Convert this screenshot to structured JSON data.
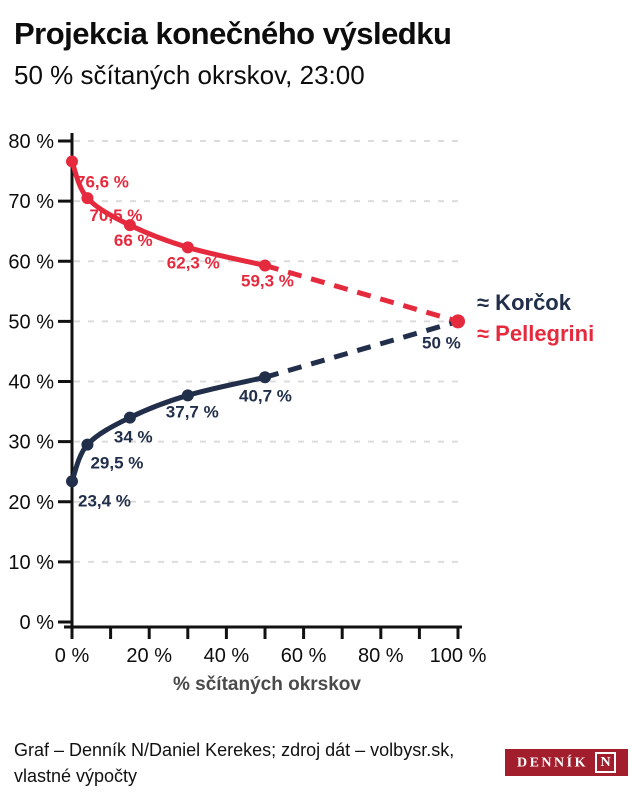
{
  "header": {
    "title": "Projekcia konečného výsledku",
    "subtitle": "50 % sčítaných okrskov, 23:00"
  },
  "chart_data": {
    "type": "line",
    "title": "Projekcia konečného výsledku",
    "subtitle": "50 % sčítaných okrskov, 23:00",
    "xlabel": "% sčítaných okrskov",
    "ylabel": "",
    "xlim": [
      0,
      100
    ],
    "ylim": [
      0,
      80
    ],
    "grid": "horizontal-dashed",
    "legend_position": "right",
    "x_minor_ticks": [
      0,
      10,
      20,
      30,
      40,
      50,
      60,
      70,
      80,
      90,
      100
    ],
    "x_ticks": [
      {
        "value": 0,
        "label": "0 %"
      },
      {
        "value": 20,
        "label": "20 %"
      },
      {
        "value": 40,
        "label": "40 %"
      },
      {
        "value": 60,
        "label": "60 %"
      },
      {
        "value": 80,
        "label": "80 %"
      },
      {
        "value": 100,
        "label": "100 %"
      }
    ],
    "y_ticks": [
      {
        "value": 0,
        "label": "0 %"
      },
      {
        "value": 10,
        "label": "10 %"
      },
      {
        "value": 20,
        "label": "20 %"
      },
      {
        "value": 30,
        "label": "30 %"
      },
      {
        "value": 40,
        "label": "40 %"
      },
      {
        "value": 50,
        "label": "50 %"
      },
      {
        "value": 60,
        "label": "60 %"
      },
      {
        "value": 70,
        "label": "70 %"
      },
      {
        "value": 80,
        "label": "80 %"
      }
    ],
    "series": [
      {
        "name": "Korčok",
        "legend_label": "≈ Korčok",
        "color": "#222f4b",
        "points": [
          {
            "x": 0,
            "y": 23.4,
            "label": "23,4 %"
          },
          {
            "x": 4,
            "y": 29.5,
            "label": "29,5 %"
          },
          {
            "x": 15,
            "y": 34,
            "label": "34 %"
          },
          {
            "x": 30,
            "y": 37.7,
            "label": "37,7 %"
          },
          {
            "x": 50,
            "y": 40.7,
            "label": "40,7 %"
          }
        ],
        "projection": {
          "x": 100,
          "y": 50,
          "label": "50 %",
          "show_dot": false
        }
      },
      {
        "name": "Pellegrini",
        "legend_label": "≈ Pellegrini",
        "color": "#e62a3e",
        "points": [
          {
            "x": 0,
            "y": 76.6,
            "label": "76,6 %"
          },
          {
            "x": 4,
            "y": 70.5,
            "label": "70,5 %"
          },
          {
            "x": 15,
            "y": 66,
            "label": "66 %"
          },
          {
            "x": 30,
            "y": 62.3,
            "label": "62,3 %"
          },
          {
            "x": 50,
            "y": 59.3,
            "label": "59,3 %"
          }
        ],
        "projection": {
          "x": 100,
          "y": 50,
          "label": null,
          "show_dot": true
        }
      }
    ]
  },
  "footer": {
    "credit_line1": "Graf – Denník N/Daniel Kerekes; zdroj dát – volbysr.sk,",
    "credit_line2": "vlastné výpočty",
    "logo_wordmark": "DENNÍK",
    "logo_n": "N"
  },
  "colors": {
    "korcok": "#222f4b",
    "pellegrini": "#e62a3e",
    "grid": "#dcdcdc",
    "axis": "#111111",
    "axis_label": "#4a4a4a",
    "text": "#0d0d0d",
    "logo_bg": "#a31e2d"
  }
}
